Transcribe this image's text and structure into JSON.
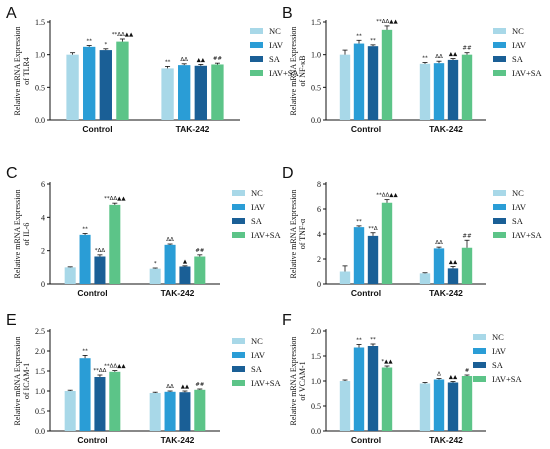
{
  "figure": {
    "background": "#ffffff"
  },
  "series_colors": [
    "#a8d8e8",
    "#2a9dd6",
    "#1a5f96",
    "#5cc488"
  ],
  "chart_data": [
    {
      "panel": "A",
      "type": "bar",
      "categories": [
        "Control",
        "TAK-242"
      ],
      "ylabel_lines": [
        "Relative mRNA Expression",
        "of TLR4"
      ],
      "ylim": [
        0,
        1.5
      ],
      "yticks": [
        "0.0",
        "0.5",
        "1.0",
        "1.5"
      ],
      "ytick_values": [
        0,
        0.5,
        1.0,
        1.5
      ],
      "legend_position": "right",
      "series": [
        {
          "name": "NC",
          "values": [
            1.0,
            0.79
          ],
          "errors": [
            0.03,
            0.03
          ],
          "annotations": [
            "",
            "**"
          ]
        },
        {
          "name": "IAV",
          "values": [
            1.12,
            0.84
          ],
          "errors": [
            0.02,
            0.02
          ],
          "annotations": [
            "**",
            "ΔΔ"
          ]
        },
        {
          "name": "SA",
          "values": [
            1.07,
            0.83
          ],
          "errors": [
            0.02,
            0.02
          ],
          "annotations": [
            "*",
            "▲▲"
          ]
        },
        {
          "name": "IAV+SA",
          "values": [
            1.2,
            0.85
          ],
          "errors": [
            0.04,
            0.02
          ],
          "annotations": [
            "**ΔΔ▲▲",
            "##"
          ]
        }
      ]
    },
    {
      "panel": "B",
      "type": "bar",
      "categories": [
        "Control",
        "TAK-242"
      ],
      "ylabel_lines": [
        "Relative mRNA Expression",
        "of NF-κB"
      ],
      "ylim": [
        0,
        1.5
      ],
      "yticks": [
        "0.0",
        "0.5",
        "1.0",
        "1.5"
      ],
      "ytick_values": [
        0,
        0.5,
        1.0,
        1.5
      ],
      "legend_position": "right",
      "series": [
        {
          "name": "NC",
          "values": [
            1.0,
            0.86
          ],
          "errors": [
            0.07,
            0.02
          ],
          "annotations": [
            "",
            "**"
          ]
        },
        {
          "name": "IAV",
          "values": [
            1.17,
            0.87
          ],
          "errors": [
            0.05,
            0.03
          ],
          "annotations": [
            "**",
            "ΔΔ"
          ]
        },
        {
          "name": "SA",
          "values": [
            1.13,
            0.92
          ],
          "errors": [
            0.02,
            0.02
          ],
          "annotations": [
            "**",
            "▲▲"
          ]
        },
        {
          "name": "IAV+SA",
          "values": [
            1.38,
            1.0
          ],
          "errors": [
            0.06,
            0.03
          ],
          "annotations": [
            "**ΔΔ▲▲",
            "##"
          ]
        }
      ]
    },
    {
      "panel": "C",
      "type": "bar",
      "categories": [
        "Control",
        "TAK-242"
      ],
      "ylabel_lines": [
        "Relative mRNA Expression",
        "of IL-6"
      ],
      "ylim": [
        0,
        6
      ],
      "yticks": [
        "0",
        "2",
        "4",
        "6"
      ],
      "ytick_values": [
        0,
        2,
        4,
        6
      ],
      "legend_position": "right",
      "series": [
        {
          "name": "NC",
          "values": [
            1.0,
            0.92
          ],
          "errors": [
            0.03,
            0.04
          ],
          "annotations": [
            "",
            "*"
          ]
        },
        {
          "name": "IAV",
          "values": [
            2.95,
            2.35
          ],
          "errors": [
            0.08,
            0.05
          ],
          "annotations": [
            "**",
            "ΔΔ"
          ]
        },
        {
          "name": "SA",
          "values": [
            1.65,
            1.05
          ],
          "errors": [
            0.1,
            0.04
          ],
          "annotations": [
            "*ΔΔ",
            "▲"
          ]
        },
        {
          "name": "IAV+SA",
          "values": [
            4.75,
            1.65
          ],
          "errors": [
            0.1,
            0.1
          ],
          "annotations": [
            "**ΔΔ▲▲",
            "##"
          ]
        }
      ]
    },
    {
      "panel": "D",
      "type": "bar",
      "categories": [
        "Control",
        "TAK-242"
      ],
      "ylabel_lines": [
        "Relative mRNA Expression",
        "of TNF-α"
      ],
      "ylim": [
        0,
        8
      ],
      "yticks": [
        "0",
        "2",
        "4",
        "6",
        "8"
      ],
      "ytick_values": [
        0,
        2,
        4,
        6,
        8
      ],
      "legend_position": "right",
      "series": [
        {
          "name": "NC",
          "values": [
            1.0,
            0.85
          ],
          "errors": [
            0.45,
            0.05
          ],
          "annotations": [
            "",
            ""
          ]
        },
        {
          "name": "IAV",
          "values": [
            4.55,
            2.85
          ],
          "errors": [
            0.1,
            0.1
          ],
          "annotations": [
            "**",
            "ΔΔ"
          ]
        },
        {
          "name": "SA",
          "values": [
            3.85,
            1.25
          ],
          "errors": [
            0.25,
            0.15
          ],
          "annotations": [
            "**Δ",
            "▲▲"
          ]
        },
        {
          "name": "IAV+SA",
          "values": [
            6.5,
            2.9
          ],
          "errors": [
            0.25,
            0.6
          ],
          "annotations": [
            "**ΔΔ▲▲",
            "##"
          ]
        }
      ]
    },
    {
      "panel": "E",
      "type": "bar",
      "categories": [
        "Control",
        "TAK-242"
      ],
      "ylabel_lines": [
        "Relative mRNA Expression",
        "of ICAM-1"
      ],
      "ylim": [
        0,
        2.5
      ],
      "yticks": [
        "0.0",
        "0.5",
        "1.0",
        "1.5",
        "2.0",
        "2.5"
      ],
      "ytick_values": [
        0,
        0.5,
        1.0,
        1.5,
        2.0,
        2.5
      ],
      "legend_position": "right",
      "series": [
        {
          "name": "NC",
          "values": [
            1.0,
            0.95
          ],
          "errors": [
            0.02,
            0.02
          ],
          "annotations": [
            "",
            ""
          ]
        },
        {
          "name": "IAV",
          "values": [
            1.82,
            0.98
          ],
          "errors": [
            0.07,
            0.02
          ],
          "annotations": [
            "**",
            "ΔΔ"
          ]
        },
        {
          "name": "SA",
          "values": [
            1.35,
            0.97
          ],
          "errors": [
            0.05,
            0.03
          ],
          "annotations": [
            "**ΔΔ",
            "▲▲"
          ]
        },
        {
          "name": "IAV+SA",
          "values": [
            1.48,
            1.03
          ],
          "errors": [
            0.03,
            0.02
          ],
          "annotations": [
            "**ΔΔ▲▲",
            "##"
          ]
        }
      ]
    },
    {
      "panel": "F",
      "type": "bar",
      "categories": [
        "Control",
        "TAK-242"
      ],
      "ylabel_lines": [
        "Relative mRNA Expression",
        "of VCAM-1"
      ],
      "ylim": [
        0,
        2.0
      ],
      "yticks": [
        "0.0",
        "0.5",
        "1.0",
        "1.5",
        "2.0"
      ],
      "ytick_values": [
        0,
        0.5,
        1.0,
        1.5,
        2.0
      ],
      "legend_position": "right",
      "series": [
        {
          "name": "NC",
          "values": [
            1.0,
            0.95
          ],
          "errors": [
            0.02,
            0.02
          ],
          "annotations": [
            "",
            ""
          ]
        },
        {
          "name": "IAV",
          "values": [
            1.67,
            1.03
          ],
          "errors": [
            0.06,
            0.02
          ],
          "annotations": [
            "**",
            "Δ"
          ]
        },
        {
          "name": "SA",
          "values": [
            1.7,
            0.97
          ],
          "errors": [
            0.04,
            0.02
          ],
          "annotations": [
            "**",
            "▲▲"
          ]
        },
        {
          "name": "IAV+SA",
          "values": [
            1.27,
            1.1
          ],
          "errors": [
            0.03,
            0.02
          ],
          "annotations": [
            "*▲▲",
            "#"
          ]
        }
      ]
    }
  ]
}
